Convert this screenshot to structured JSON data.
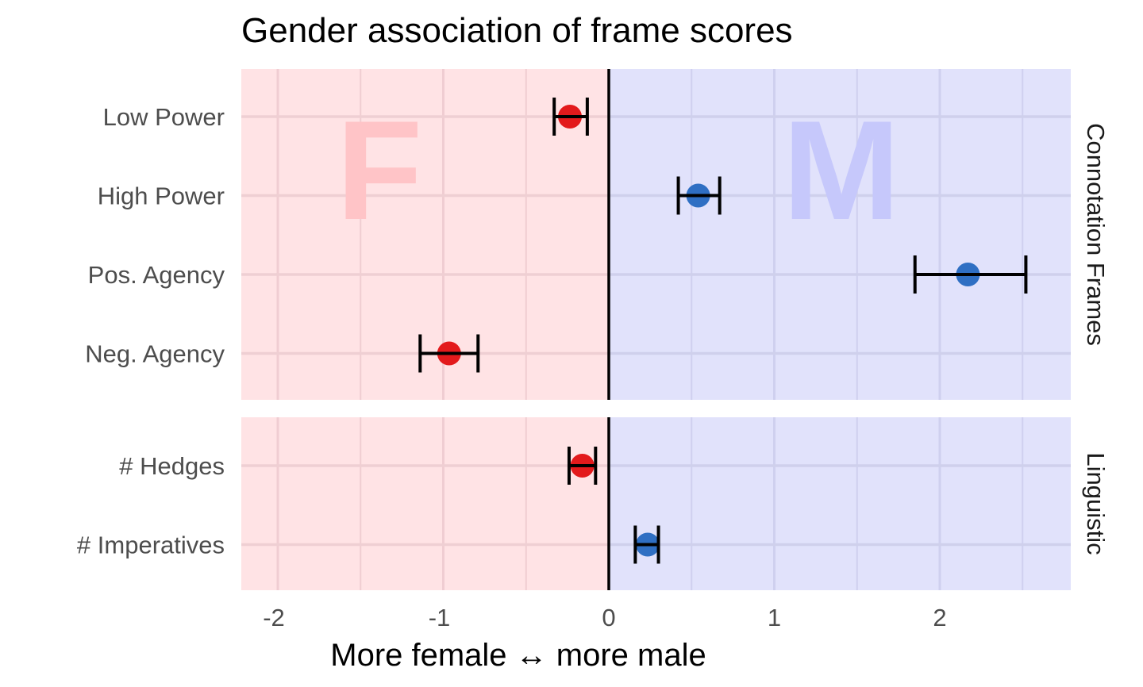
{
  "title": "Gender association of frame scores",
  "xlabel": "More female ↔ more male",
  "watermarks": {
    "female": "F",
    "male": "M"
  },
  "colors": {
    "female_bg": "#ffe3e5",
    "male_bg": "#e1e2fb",
    "female_point": "#e31a1c",
    "male_point": "#2f6fc3",
    "errorbar": "#000000",
    "female_watermark": "#ffc4c7",
    "male_watermark": "#c6c8fb"
  },
  "chart_data": {
    "type": "scatter",
    "subtype": "dot-with-errorbars, faceted",
    "title": "Gender association of frame scores",
    "xlabel": "More female ↔ more male",
    "ylabel": "",
    "xlim": [
      -2.22,
      2.79
    ],
    "xticks": [
      -2,
      -1,
      0,
      1,
      2
    ],
    "grid": true,
    "reference_line_x": 0,
    "facets": [
      {
        "name": "Connotation Frames",
        "points": [
          {
            "label": "Low Power",
            "value": -0.235,
            "ci_low": -0.33,
            "ci_high": -0.13,
            "side": "female"
          },
          {
            "label": "High Power",
            "value": 0.54,
            "ci_low": 0.42,
            "ci_high": 0.67,
            "side": "male"
          },
          {
            "label": "Pos. Agency",
            "value": 2.17,
            "ci_low": 1.85,
            "ci_high": 2.52,
            "side": "male"
          },
          {
            "label": "Neg. Agency",
            "value": -0.965,
            "ci_low": -1.14,
            "ci_high": -0.79,
            "side": "female"
          }
        ]
      },
      {
        "name": "Linguistic",
        "points": [
          {
            "label": "# Hedges",
            "value": -0.16,
            "ci_low": -0.24,
            "ci_high": -0.08,
            "side": "female"
          },
          {
            "label": "# Imperatives",
            "value": 0.235,
            "ci_low": 0.16,
            "ci_high": 0.3,
            "side": "male"
          }
        ]
      }
    ],
    "annotations": [
      "F (female region)",
      "M (male region)"
    ]
  }
}
